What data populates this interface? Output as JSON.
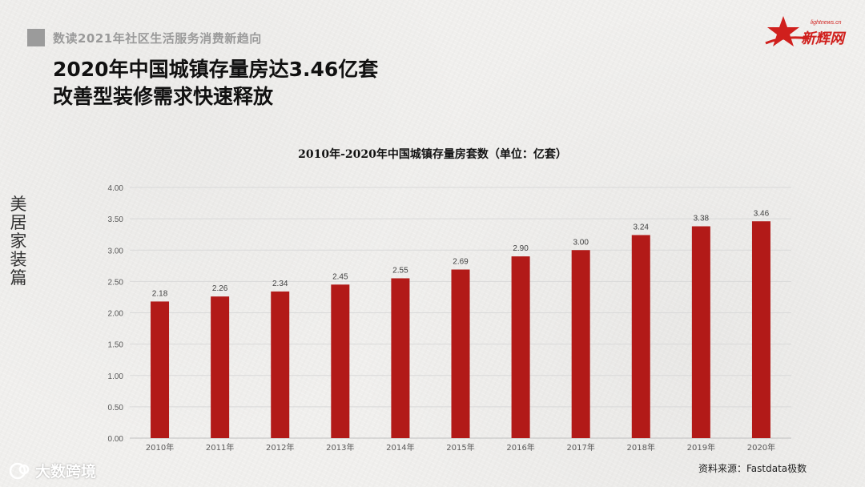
{
  "header": {
    "kicker": "数读2021年社区生活服务消费新趋向",
    "title_line1": "2020年中国城镇存量房达3.46亿套",
    "title_line2": "改善型装修需求快速释放"
  },
  "brand": {
    "logo_url_text": "lightnews.cn",
    "logo_name": "新辉网",
    "accent": "#d0201d"
  },
  "side_label": "美居家装篇",
  "source": "资料来源：Fastdata极数",
  "watermark": "大数跨境",
  "chart_data": {
    "type": "bar",
    "title": "2010年-2020年中国城镇存量房套数（单位：亿套）",
    "categories": [
      "2010年",
      "2011年",
      "2012年",
      "2013年",
      "2014年",
      "2015年",
      "2016年",
      "2017年",
      "2018年",
      "2019年",
      "2020年"
    ],
    "values": [
      2.18,
      2.26,
      2.34,
      2.45,
      2.55,
      2.69,
      2.9,
      3.0,
      3.24,
      3.38,
      3.46
    ],
    "value_labels": [
      "2.18",
      "2.26",
      "2.34",
      "2.45",
      "2.55",
      "2.69",
      "2.90",
      "3.00",
      "3.24",
      "3.38",
      "3.46"
    ],
    "y_ticks": [
      "0.00",
      "0.50",
      "1.00",
      "1.50",
      "2.00",
      "2.50",
      "3.00",
      "3.50",
      "4.00"
    ],
    "ylim": [
      0,
      4
    ],
    "grid": true,
    "bar_color": "#b21a18",
    "xlabel": "",
    "ylabel": ""
  }
}
